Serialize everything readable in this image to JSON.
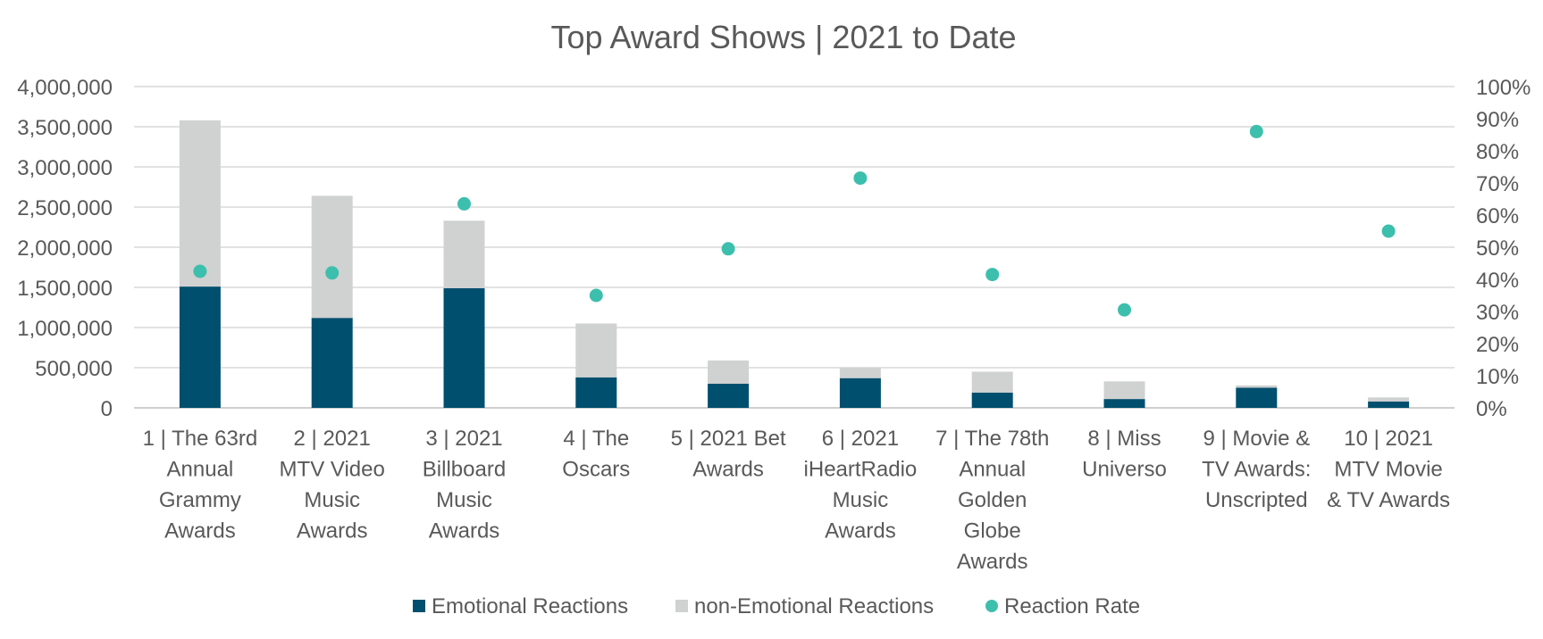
{
  "chart_data": {
    "type": "bar",
    "stacked": true,
    "title": "Top Award Shows | 2021 to Date",
    "xlabel": "",
    "ylabel": "",
    "ylim": [
      0,
      4000000
    ],
    "y_ticks": [
      0,
      500000,
      1000000,
      1500000,
      2000000,
      2500000,
      3000000,
      3500000,
      4000000
    ],
    "y_tick_labels": [
      "0",
      "500,000",
      "1,000,000",
      "1,500,000",
      "2,000,000",
      "2,500,000",
      "3,000,000",
      "3,500,000",
      "4,000,000"
    ],
    "y2lim": [
      0,
      100
    ],
    "y2_ticks": [
      0,
      10,
      20,
      30,
      40,
      50,
      60,
      70,
      80,
      90,
      100
    ],
    "y2_tick_labels": [
      "0%",
      "10%",
      "20%",
      "30%",
      "40%",
      "50%",
      "60%",
      "70%",
      "80%",
      "90%",
      "100%"
    ],
    "grid": true,
    "legend_position": "bottom",
    "categories": [
      [
        "1 | The 63rd",
        "Annual",
        "Grammy",
        "Awards"
      ],
      [
        "2 | 2021",
        "MTV Video",
        "Music",
        "Awards"
      ],
      [
        "3 | 2021",
        "Billboard",
        "Music",
        "Awards"
      ],
      [
        "4 | The",
        "Oscars"
      ],
      [
        "5 | 2021 Bet",
        "Awards"
      ],
      [
        "6 | 2021",
        "iHeartRadio",
        "Music",
        "Awards"
      ],
      [
        "7 | The 78th",
        "Annual",
        "Golden",
        "Globe",
        "Awards"
      ],
      [
        "8 | Miss",
        "Universo"
      ],
      [
        "9 | Movie &",
        "TV Awards:",
        "Unscripted"
      ],
      [
        "10 | 2021",
        "MTV Movie",
        "& TV Awards"
      ]
    ],
    "series": [
      {
        "name": "Emotional Reactions",
        "type": "bar",
        "color": "#004f6e",
        "values": [
          1510000,
          1120000,
          1490000,
          380000,
          300000,
          370000,
          190000,
          110000,
          250000,
          80000
        ]
      },
      {
        "name": "non-Emotional Reactions",
        "type": "bar",
        "color": "#d0d1d1",
        "values": [
          2070000,
          1520000,
          840000,
          670000,
          290000,
          130000,
          260000,
          220000,
          30000,
          50000
        ]
      },
      {
        "name": "Reaction Rate",
        "type": "scatter",
        "axis": "secondary",
        "color": "#3dbfad",
        "values": [
          42.5,
          42,
          63.5,
          35,
          49.5,
          71.5,
          41.5,
          30.5,
          86,
          55
        ]
      }
    ]
  }
}
